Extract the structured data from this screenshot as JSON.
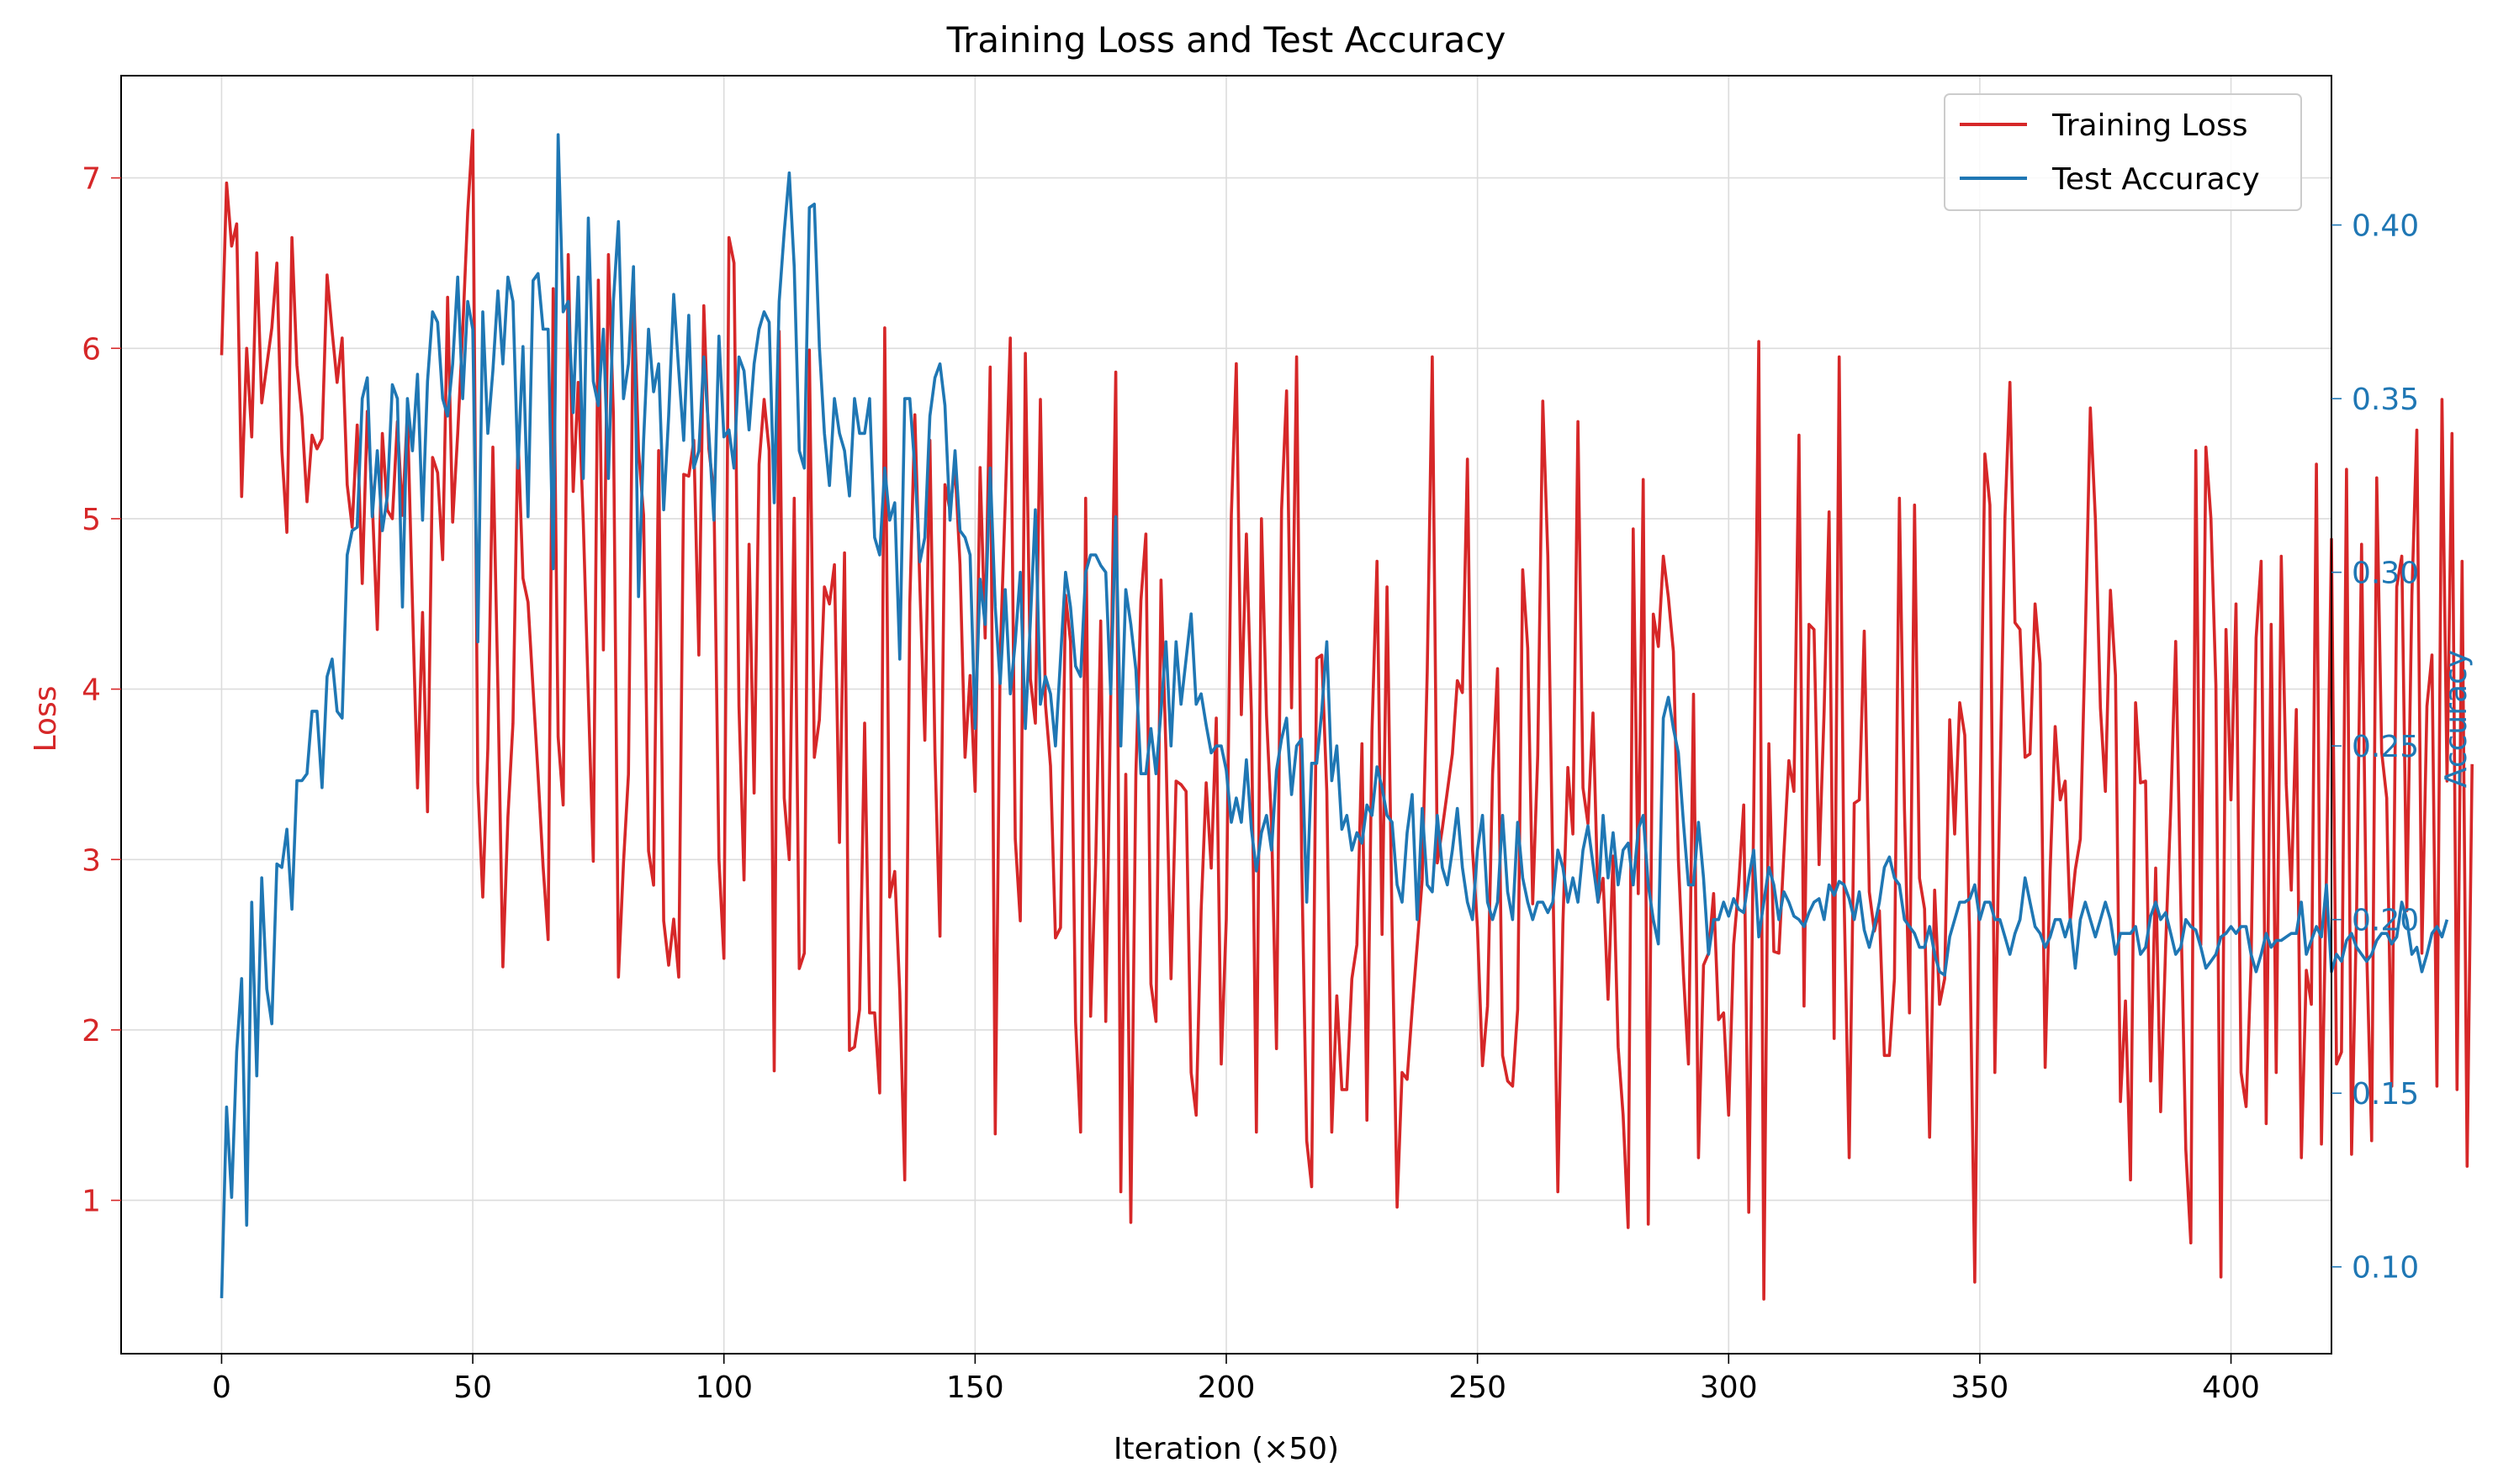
{
  "chart_data": {
    "type": "line",
    "title": "Training Loss and Test Accuracy",
    "xlabel": "Iteration (×50)",
    "ylabel_left": "Loss",
    "ylabel_right": "Accuracy",
    "xlim": [
      -20,
      420
    ],
    "ylim_left": [
      0.1,
      7.6
    ],
    "ylim_right": [
      0.075,
      0.443
    ],
    "x_ticks": [
      0,
      50,
      100,
      150,
      200,
      250,
      300,
      350,
      400
    ],
    "y_ticks_left": [
      1,
      2,
      3,
      4,
      5,
      6,
      7
    ],
    "y_ticks_right": [
      0.1,
      0.15,
      0.2,
      0.25,
      0.3,
      0.35,
      0.4
    ],
    "grid": true,
    "legend_position": "top-right",
    "colors": {
      "loss": "#d62728",
      "accuracy": "#1f77b4"
    },
    "series": [
      {
        "name": "Training Loss",
        "axis": "left",
        "color": "#d62728",
        "x_step": 1,
        "values": [
          5.96,
          6.97,
          6.6,
          6.73,
          5.13,
          6.0,
          5.48,
          6.56,
          5.68,
          5.9,
          6.12,
          6.5,
          5.4,
          4.92,
          6.65,
          5.9,
          5.6,
          5.1,
          5.49,
          5.41,
          5.47,
          6.43,
          6.1,
          5.8,
          6.06,
          5.2,
          4.95,
          5.55,
          4.62,
          5.63,
          5.1,
          4.35,
          5.5,
          5.05,
          5.0,
          5.57,
          5.02,
          5.63,
          4.5,
          3.42,
          4.45,
          3.28,
          5.36,
          5.27,
          4.76,
          6.3,
          4.98,
          5.5,
          6.1,
          6.8,
          7.28,
          3.45,
          2.78,
          3.65,
          5.42,
          4.0,
          2.37,
          3.25,
          3.8,
          5.5,
          4.65,
          4.51,
          4.0,
          3.5,
          2.96,
          2.53,
          6.35,
          3.72,
          3.32,
          6.55,
          5.16,
          5.8,
          4.98,
          3.96,
          2.99,
          6.4,
          4.23,
          6.55,
          5.61,
          2.31,
          2.98,
          3.5,
          6.41,
          5.4,
          5.02,
          3.05,
          2.85,
          5.4,
          2.64,
          2.38,
          2.65,
          2.31,
          5.26,
          5.25,
          5.46,
          4.2,
          6.25,
          5.41,
          5.15,
          3.0,
          2.42,
          6.65,
          6.5,
          3.9,
          2.88,
          4.85,
          3.39,
          5.32,
          5.7,
          5.4,
          1.76,
          6.1,
          3.36,
          3.0,
          5.12,
          2.36,
          2.45,
          5.99,
          3.6,
          3.82,
          4.6,
          4.5,
          4.73,
          3.1,
          4.8,
          1.88,
          1.9,
          2.12,
          3.8,
          2.1,
          2.1,
          1.63,
          6.12,
          2.78,
          2.93,
          2.22,
          1.12,
          4.5,
          5.61,
          4.6,
          3.7,
          5.46,
          3.63,
          2.55,
          5.2,
          5.05,
          5.31,
          4.73,
          3.6,
          4.08,
          3.4,
          5.3,
          4.3,
          5.89,
          1.39,
          4.2,
          5.1,
          6.06,
          3.12,
          2.64,
          5.97,
          4.06,
          3.8,
          5.7,
          3.91,
          3.55,
          2.54,
          2.6,
          4.55,
          4.28,
          2.05,
          1.4,
          5.12,
          2.08,
          2.98,
          4.4,
          2.05,
          3.96,
          5.86,
          1.05,
          3.5,
          0.87,
          3.5,
          4.52,
          4.91,
          2.27,
          2.05,
          4.64,
          3.63,
          2.3,
          3.46,
          3.44,
          3.4,
          1.75,
          1.5,
          2.7,
          3.45,
          2.95,
          3.83,
          1.8,
          2.65,
          5.02,
          5.91,
          3.85,
          4.91,
          3.85,
          1.4,
          5.0,
          3.85,
          3.21,
          1.89,
          5.05,
          5.75,
          3.89,
          5.95,
          3.01,
          1.35,
          1.08,
          4.18,
          4.2,
          3.4,
          1.4,
          2.2,
          1.65,
          1.65,
          2.3,
          2.5,
          3.68,
          1.47,
          3.75,
          4.75,
          2.56,
          4.6,
          2.62,
          0.96,
          1.75,
          1.71,
          2.12,
          2.5,
          2.88,
          4.1,
          5.95,
          2.98,
          3.18,
          3.4,
          3.62,
          4.05,
          3.98,
          5.35,
          3.06,
          2.6,
          1.79,
          2.14,
          3.5,
          4.12,
          1.85,
          1.7,
          1.67,
          2.12,
          4.7,
          4.24,
          2.74,
          3.61,
          5.69,
          4.78,
          2.94,
          1.05,
          2.62,
          3.54,
          3.15,
          5.57,
          3.42,
          3.21,
          3.86,
          2.75,
          2.89,
          2.18,
          3.02,
          1.9,
          1.5,
          0.84,
          4.94,
          2.8,
          5.23,
          0.86,
          4.44,
          4.25,
          4.78,
          4.54,
          4.22,
          3.0,
          2.33,
          1.8,
          3.97,
          1.25,
          2.38,
          2.45,
          2.8,
          2.06,
          2.1,
          1.5,
          2.5,
          2.85,
          3.32,
          0.93,
          3.29,
          6.04,
          0.42,
          3.68,
          2.46,
          2.45,
          3.04,
          3.58,
          3.4,
          5.49,
          2.14,
          4.38,
          4.35,
          2.97,
          3.87,
          5.04,
          1.95,
          5.95,
          2.76,
          1.25,
          3.33,
          3.35,
          4.34,
          2.81,
          2.58,
          2.7,
          1.85,
          1.85,
          2.3,
          5.12,
          3.3,
          2.1,
          5.08,
          2.89,
          2.71,
          1.37,
          2.82,
          2.15,
          2.3,
          3.82,
          3.15,
          3.92,
          3.73,
          2.52,
          0.52,
          3.19,
          5.38,
          5.08,
          1.75,
          3.42,
          5.01,
          5.8,
          4.39,
          4.35,
          3.6,
          3.62,
          4.5,
          4.15,
          1.78,
          2.93,
          3.78,
          3.35,
          3.46,
          2.64,
          2.94,
          3.12,
          4.3,
          5.65,
          5.0,
          3.89,
          3.4,
          4.58,
          4.08,
          1.58,
          2.17,
          1.12,
          3.92,
          3.45,
          3.46,
          1.7,
          2.95,
          1.52,
          2.5,
          3.3,
          4.28,
          2.75,
          1.3,
          0.75,
          5.4,
          2.5,
          5.42,
          5.0,
          4.02,
          0.55,
          4.35,
          3.35,
          4.5,
          1.75,
          1.55,
          2.38,
          4.3,
          4.75,
          1.45,
          4.38,
          1.75,
          4.78,
          3.44,
          2.82,
          3.88,
          1.25,
          2.35,
          2.15,
          5.32,
          1.33,
          2.9,
          4.88,
          1.8,
          1.87,
          5.29,
          1.27,
          2.7,
          4.85,
          2.48,
          1.35,
          5.24,
          3.63,
          3.36,
          1.67,
          4.6,
          4.78,
          2.7,
          4.55,
          5.52,
          2.45,
          3.9,
          4.2,
          1.67,
          5.7,
          3.46,
          5.5,
          1.65,
          4.75,
          1.2,
          3.56
        ]
      },
      {
        "name": "Test Accuracy",
        "axis": "right",
        "color": "#1f77b4",
        "x_step": 1,
        "values": [
          0.091,
          0.146,
          0.12,
          0.162,
          0.183,
          0.112,
          0.205,
          0.155,
          0.212,
          0.18,
          0.17,
          0.216,
          0.215,
          0.226,
          0.203,
          0.24,
          0.24,
          0.242,
          0.26,
          0.26,
          0.238,
          0.27,
          0.275,
          0.26,
          0.258,
          0.305,
          0.312,
          0.313,
          0.35,
          0.356,
          0.316,
          0.335,
          0.312,
          0.322,
          0.354,
          0.35,
          0.29,
          0.35,
          0.335,
          0.357,
          0.315,
          0.355,
          0.375,
          0.372,
          0.35,
          0.345,
          0.36,
          0.385,
          0.35,
          0.378,
          0.37,
          0.28,
          0.375,
          0.34,
          0.358,
          0.381,
          0.36,
          0.385,
          0.378,
          0.33,
          0.365,
          0.316,
          0.384,
          0.386,
          0.37,
          0.37,
          0.301,
          0.426,
          0.375,
          0.378,
          0.346,
          0.385,
          0.327,
          0.402,
          0.355,
          0.348,
          0.37,
          0.327,
          0.378,
          0.401,
          0.35,
          0.36,
          0.388,
          0.293,
          0.338,
          0.37,
          0.352,
          0.36,
          0.318,
          0.345,
          0.38,
          0.358,
          0.338,
          0.374,
          0.33,
          0.335,
          0.362,
          0.34,
          0.315,
          0.368,
          0.339,
          0.341,
          0.33,
          0.362,
          0.358,
          0.341,
          0.36,
          0.37,
          0.375,
          0.372,
          0.32,
          0.378,
          0.398,
          0.415,
          0.388,
          0.335,
          0.33,
          0.405,
          0.406,
          0.365,
          0.34,
          0.325,
          0.35,
          0.34,
          0.335,
          0.322,
          0.35,
          0.34,
          0.34,
          0.35,
          0.31,
          0.305,
          0.33,
          0.315,
          0.32,
          0.275,
          0.35,
          0.35,
          0.33,
          0.303,
          0.31,
          0.345,
          0.356,
          0.36,
          0.348,
          0.315,
          0.335,
          0.312,
          0.31,
          0.305,
          0.255,
          0.298,
          0.285,
          0.33,
          0.29,
          0.268,
          0.295,
          0.265,
          0.28,
          0.3,
          0.255,
          0.286,
          0.318,
          0.262,
          0.27,
          0.265,
          0.25,
          0.275,
          0.3,
          0.29,
          0.273,
          0.27,
          0.3,
          0.305,
          0.305,
          0.302,
          0.3,
          0.265,
          0.316,
          0.25,
          0.295,
          0.285,
          0.272,
          0.242,
          0.242,
          0.255,
          0.242,
          0.26,
          0.28,
          0.25,
          0.28,
          0.262,
          0.275,
          0.288,
          0.262,
          0.265,
          0.256,
          0.248,
          0.25,
          0.25,
          0.243,
          0.228,
          0.235,
          0.228,
          0.246,
          0.226,
          0.214,
          0.225,
          0.23,
          0.22,
          0.243,
          0.252,
          0.258,
          0.236,
          0.25,
          0.252,
          0.205,
          0.245,
          0.245,
          0.26,
          0.28,
          0.24,
          0.25,
          0.226,
          0.23,
          0.22,
          0.225,
          0.222,
          0.233,
          0.23,
          0.244,
          0.238,
          0.23,
          0.228,
          0.21,
          0.205,
          0.225,
          0.236,
          0.2,
          0.232,
          0.21,
          0.208,
          0.23,
          0.215,
          0.21,
          0.22,
          0.232,
          0.215,
          0.205,
          0.2,
          0.22,
          0.23,
          0.205,
          0.2,
          0.205,
          0.23,
          0.208,
          0.2,
          0.228,
          0.212,
          0.205,
          0.2,
          0.205,
          0.205,
          0.202,
          0.205,
          0.22,
          0.215,
          0.205,
          0.212,
          0.205,
          0.22,
          0.227,
          0.216,
          0.205,
          0.23,
          0.212,
          0.225,
          0.21,
          0.22,
          0.222,
          0.21,
          0.226,
          0.23,
          0.21,
          0.2,
          0.193,
          0.258,
          0.264,
          0.255,
          0.248,
          0.228,
          0.21,
          0.21,
          0.228,
          0.212,
          0.19,
          0.2,
          0.2,
          0.205,
          0.201,
          0.206,
          0.203,
          0.202,
          0.212,
          0.22,
          0.195,
          0.205,
          0.215,
          0.21,
          0.2,
          0.208,
          0.205,
          0.201,
          0.2,
          0.198,
          0.202,
          0.205,
          0.206,
          0.2,
          0.21,
          0.207,
          0.211,
          0.21,
          0.206,
          0.2,
          0.208,
          0.197,
          0.192,
          0.198,
          0.205,
          0.215,
          0.218,
          0.212,
          0.21,
          0.2,
          0.198,
          0.196,
          0.192,
          0.192,
          0.198,
          0.19,
          0.185,
          0.184,
          0.195,
          0.2,
          0.205,
          0.205,
          0.206,
          0.21,
          0.2,
          0.205,
          0.205,
          0.2,
          0.2,
          0.195,
          0.19,
          0.196,
          0.2,
          0.212,
          0.205,
          0.198,
          0.196,
          0.192,
          0.195,
          0.2,
          0.2,
          0.195,
          0.2,
          0.186,
          0.2,
          0.205,
          0.2,
          0.195,
          0.2,
          0.205,
          0.2,
          0.19,
          0.196,
          0.196,
          0.196,
          0.198,
          0.19,
          0.192,
          0.201,
          0.205,
          0.2,
          0.202,
          0.196,
          0.19,
          0.192,
          0.2,
          0.198,
          0.197,
          0.192,
          0.186,
          0.188,
          0.19,
          0.195,
          0.196,
          0.198,
          0.196,
          0.198,
          0.198,
          0.19,
          0.185,
          0.19,
          0.196,
          0.192,
          0.194,
          0.194,
          0.195,
          0.196,
          0.196,
          0.205,
          0.19,
          0.194,
          0.198,
          0.195,
          0.21,
          0.185,
          0.19,
          0.188,
          0.194,
          0.196,
          0.192,
          0.19,
          0.188,
          0.19,
          0.194,
          0.196,
          0.196,
          0.193,
          0.195,
          0.205,
          0.2,
          0.19,
          0.192,
          0.185,
          0.19,
          0.196,
          0.198,
          0.195,
          0.2
        ]
      }
    ]
  }
}
